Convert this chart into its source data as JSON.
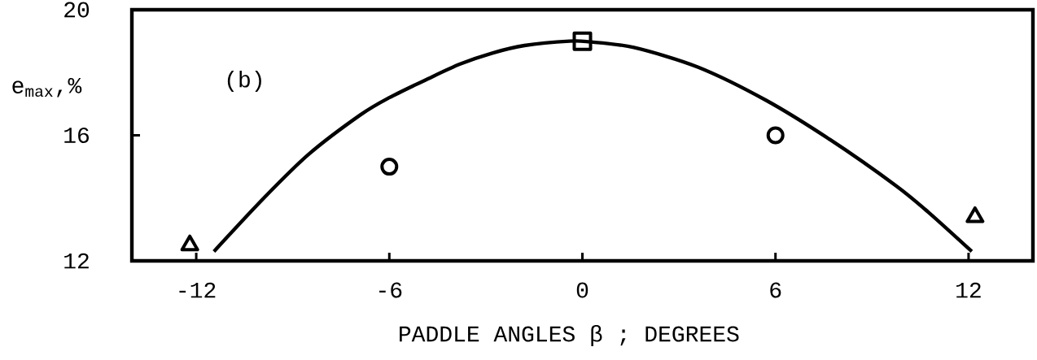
{
  "chart_data": {
    "type": "scatter",
    "xlabel": "PADDLE ANGLES β ; DEGREES",
    "ylabel": "e$_{max}$,%",
    "annotations": [
      "(b)"
    ],
    "xlim": [
      -14,
      14
    ],
    "ylim": [
      12,
      20
    ],
    "xticks": [
      -12,
      -6,
      0,
      6,
      12
    ],
    "yticks": [
      12,
      16,
      20
    ],
    "series": [
      {
        "type": "line",
        "color": "#000000",
        "marker": "none",
        "line_style": "solid",
        "x": [
          -11.45,
          -9.9,
          -8.5,
          -6.9,
          -6.0,
          -4.8,
          -3.8,
          -2.8,
          -1.8,
          -0.4,
          0.2,
          1.6,
          3.6,
          5.7,
          7.7,
          9.75,
          10.75,
          12.1
        ],
        "values": [
          12.3,
          14.0,
          15.4,
          16.65,
          17.2,
          17.8,
          18.27,
          18.62,
          18.86,
          19.0,
          18.98,
          18.8,
          18.17,
          17.12,
          15.86,
          14.39,
          13.55,
          12.3
        ]
      },
      {
        "color": "#000000",
        "marker": "triangle",
        "x": [
          -12.2
        ],
        "values": [
          12.5
        ]
      },
      {
        "color": "#000000",
        "marker": "circle",
        "x": [
          -6
        ],
        "values": [
          15.0
        ]
      },
      {
        "color": "#000000",
        "marker": "square",
        "x": [
          0
        ],
        "values": [
          19.0
        ]
      },
      {
        "color": "#000000",
        "marker": "circle",
        "x": [
          6
        ],
        "values": [
          16.0
        ]
      },
      {
        "color": "#000000",
        "marker": "triangle",
        "x": [
          12.2
        ],
        "values": [
          13.4
        ]
      }
    ]
  }
}
